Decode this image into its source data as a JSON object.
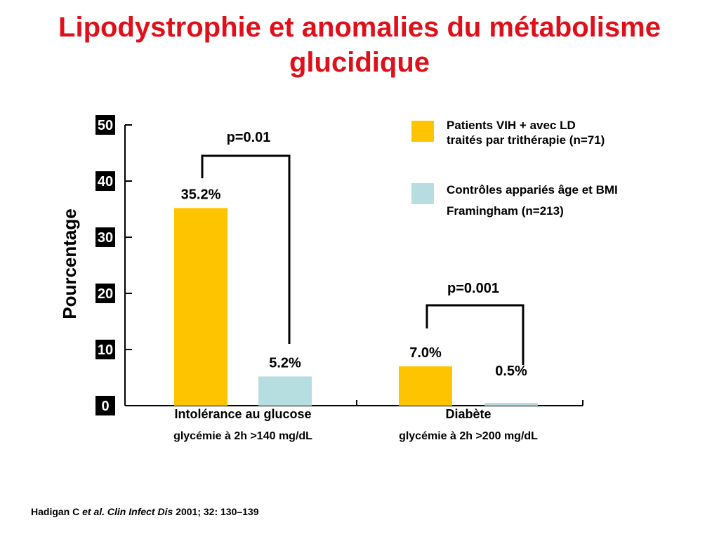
{
  "title_lines": [
    "Lipodystrophie et anomalies du métabolisme",
    "glucidique"
  ],
  "colors": {
    "title": "#e0101a",
    "series1": "#ffc400",
    "series2": "#b6dde0",
    "axis": "#000000",
    "tick_bg": "#000000",
    "tick_text": "#ffffff"
  },
  "chart_data": {
    "type": "bar",
    "title": "Lipodystrophie et anomalies du métabolisme glucidique",
    "ylabel": "Pourcentage",
    "xlabel": "",
    "ylim": [
      0,
      50
    ],
    "yticks": [
      "0",
      "10",
      "20",
      "30",
      "40",
      "50"
    ],
    "categories": [
      {
        "label": "Intolérance au glucose",
        "sublabel": "glycémie à 2h >140 mg/dL"
      },
      {
        "label": "Diabète",
        "sublabel": "glycémie à 2h >200 mg/dL"
      }
    ],
    "series": [
      {
        "name": "Patients VIH + avec LD traités par trithérapie (n=71)",
        "legend_lines": [
          "Patients VIH + avec LD",
          "traités par trithérapie (n=71)"
        ],
        "values": [
          35.2,
          7.0
        ],
        "labels": [
          "35.2%",
          "7.0%"
        ]
      },
      {
        "name": "Contrôles appariés âge et BMI Framingham (n=213)",
        "legend_lines": [
          "Contrôles appariés âge et BMI",
          "Framingham  (n=213)"
        ],
        "values": [
          5.2,
          0.5
        ],
        "labels": [
          "5.2%",
          "0.5%"
        ]
      }
    ],
    "annotations": [
      {
        "text": "p=0.01",
        "category": 0
      },
      {
        "text": "p=0.001",
        "category": 1
      }
    ],
    "legend_position": "top-right"
  },
  "citation": {
    "author": "Hadigan C",
    "etal": "et al.",
    "journal": "Clin Infect Dis",
    "rest": "2001; 32: 130–139"
  }
}
